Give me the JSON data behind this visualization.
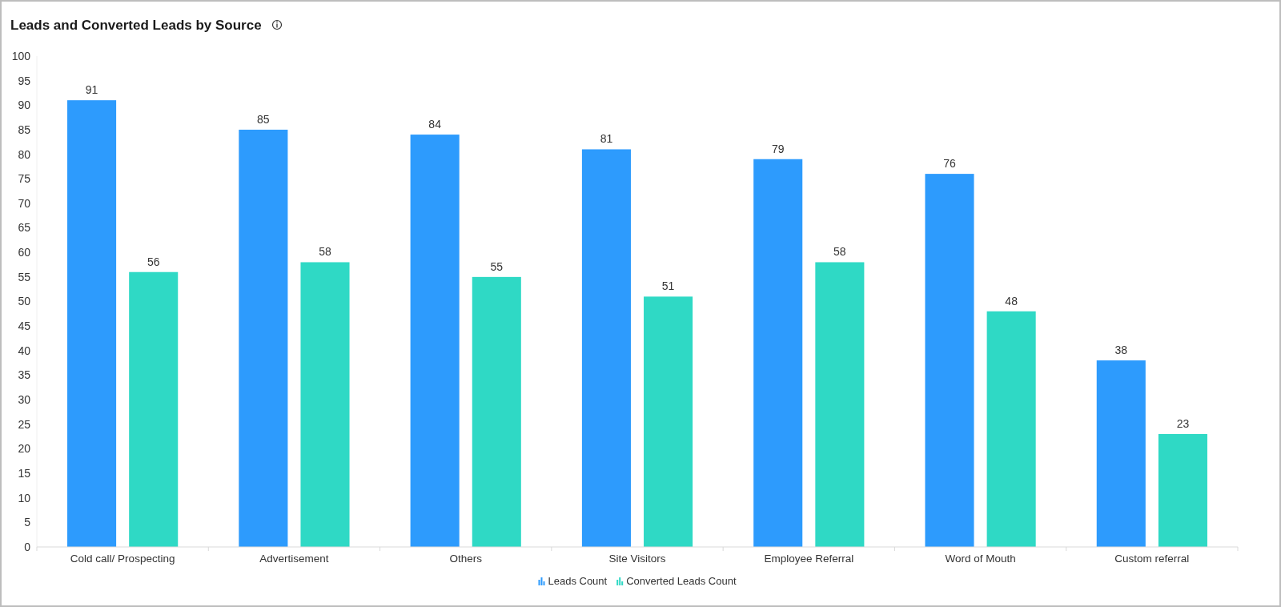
{
  "chart_data": {
    "type": "bar",
    "title": "Leads and Converted Leads by Source",
    "categories": [
      "Cold call/ Prospecting",
      "Advertisement",
      "Others",
      "Site Visitors",
      "Employee Referral",
      "Word of Mouth",
      "Custom referral"
    ],
    "series": [
      {
        "name": "Leads Count",
        "color": "#2d9bfd",
        "values": [
          91,
          85,
          84,
          81,
          79,
          76,
          38
        ]
      },
      {
        "name": "Converted Leads Count",
        "color": "#2fd9c5",
        "values": [
          56,
          58,
          55,
          51,
          58,
          48,
          23
        ]
      }
    ],
    "ylim": [
      0,
      100
    ],
    "yticks": [
      0,
      5,
      10,
      15,
      20,
      25,
      30,
      35,
      40,
      45,
      50,
      55,
      60,
      65,
      70,
      75,
      80,
      85,
      90,
      95,
      100
    ],
    "data_labels": true,
    "legend": "bottom",
    "grid": false
  }
}
